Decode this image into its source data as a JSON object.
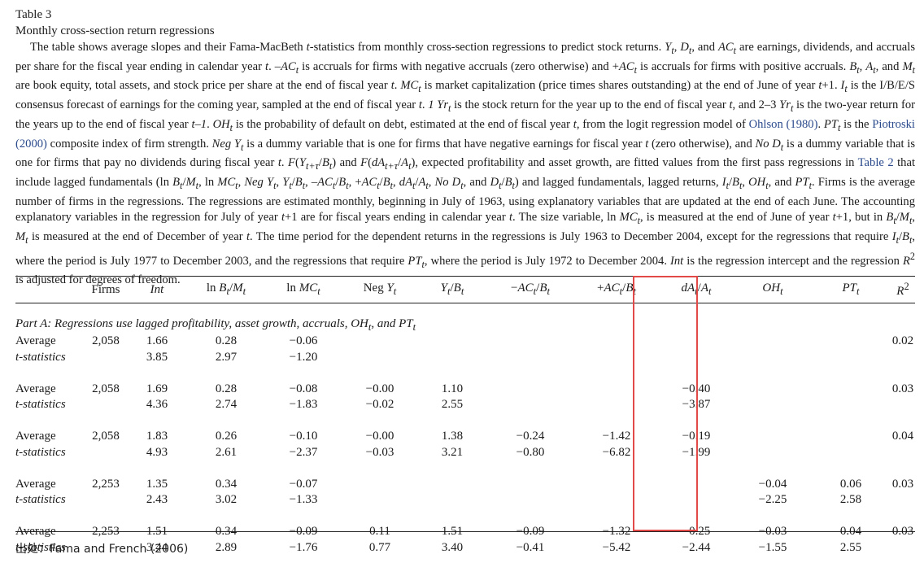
{
  "table": {
    "label": "Table 3",
    "title": "Monthly cross-section return regressions",
    "caption_html": "The table shows average slopes and their Fama-MacBeth <i>t</i>-statistics from monthly cross-section regressions to predict stock returns. <i>Y<sub>t</sub></i>, <i>D<sub>t</sub></i>, and <i>AC<sub>t</sub></i> are earnings, dividends, and accruals per share for the fiscal year ending in calendar year <i>t</i>. –<i>AC<sub>t</sub></i> is accruals for firms with negative accruals (zero otherwise) and +<i>AC<sub>t</sub></i> is accruals for firms with positive accruals. <i>B<sub>t</sub></i>, <i>A<sub>t</sub></i>, and <i>M<sub>t</sub></i> are book equity, total assets, and stock price per share at the end of fiscal year <i>t</i>. <i>MC<sub>t</sub></i> is market capitalization (price times shares outstanding) at the end of June of year <i>t</i>+1. <i>I<sub>t</sub></i> is the I/B/E/S consensus forecast of earnings for the coming year, sampled at the end of fiscal year <i>t</i>. <i>1 Yr<sub>t</sub></i> is the stock return for the year up to the end of fiscal year <i>t</i>, and 2–3 <i>Yr<sub>t</sub></i> is the two-year return for the years up to the end of fiscal year <i>t–1</i>. <i>OH<sub>t</sub></i> is the probability of default on debt, estimated at the end of fiscal year <i>t</i>, from the logit regression model of <a>Ohlson (1980)</a>. <i>PT<sub>t</sub></i> is the <a>Piotroski (2000)</a> composite index of firm strength. <i>Neg Y<sub>t</sub></i> is a dummy variable that is one for firms that have negative earnings for fiscal year <i>t</i> (zero otherwise), and <i>No D<sub>t</sub></i> is a dummy variable that is one for firms that pay no dividends during fiscal year <i>t</i>. <i>F</i>(<i>Y<sub>t+τ</sub></i>/<i>B<sub>t</sub></i>) and <i>F</i>(<i>dA<sub>t+τ</sub></i>/<i>A<sub>t</sub></i>), expected profitability and asset growth, are fitted values from the first pass regressions in <a>Table 2</a> that include lagged fundamentals (ln <i>B<sub>t</sub></i>/<i>M<sub>t</sub></i>, ln <i>MC<sub>t</sub></i>, <i>Neg Y<sub>t</sub></i>, <i>Y<sub>t</sub></i>/<i>B<sub>t</sub></i>, –<i>AC<sub>t</sub></i>/<i>B<sub>t</sub></i>, +<i>AC<sub>t</sub></i>/<i>B<sub>t</sub></i>, <i>dA<sub>t</sub></i>/<i>A<sub>t</sub></i>, <i>No D<sub>t</sub></i>, and <i>D<sub>t</sub></i>/<i>B<sub>t</sub></i>) and lagged fundamentals, lagged returns, <i>I<sub>t</sub></i>/<i>B<sub>t</sub></i>, <i>OH<sub>t</sub></i>, and <i>PT<sub>t</sub></i>. Firms is the average number of firms in the regressions. The regressions are estimated monthly, beginning in July of 1963, using explanatory variables that are updated at the end of each June. The accounting explanatory variables in the regression for July of year <i>t</i>+1 are for fiscal years ending in calendar year <i>t</i>. The size variable, ln <i>MC<sub>t</sub></i>, is measured at the end of June of year <i>t</i>+1, but in <i>B<sub>t</sub></i>/<i>M<sub>t</sub></i>, <i>M<sub>t</sub></i> is measured at the end of December of year <i>t</i>. The time period for the dependent returns in the regressions is July 1963 to December 2004, except for the regressions that require <i>I<sub>t</sub></i>/<i>B<sub>t</sub></i>, where the period is July 1977 to December 2003, and the regressions that require <i>PT<sub>t</sub></i>, where the period is July 1972 to December 2004. <i>Int</i> is the regression intercept and the regression <i>R</i><sup>2</sup> is adjusted for degrees of freedom.",
    "headers_html": [
      "",
      "Firms",
      "<i>Int</i>",
      "ln <i>B<sub>t</sub></i>/<i>M<sub>t</sub></i>",
      "ln <i>MC<sub>t</sub></i>",
      "Neg <i>Y<sub>t</sub></i>",
      "<i>Y<sub>t</sub></i>/<i>B<sub>t</sub></i>",
      "−<i>AC<sub>t</sub></i>/<i>B<sub>t</sub></i>",
      "+<i>AC<sub>t</sub></i>/<i>B<sub>t</sub></i>",
      "<i>dA<sub>t</sub></i>/<i>A<sub>t</sub></i>",
      "<i>OH<sub>t</sub></i>",
      "<i>PT<sub>t</sub></i>",
      "<i>R</i><sup>2</sup>"
    ],
    "part_a_html": "Part A: Regressions use lagged profitability, asset growth, accruals, <i>OH<sub>t</sub></i>, and <i>PT<sub>t</sub></i>",
    "row_labels": {
      "avg": "Average",
      "tstat": "t-statistics"
    },
    "groups": [
      {
        "avg": [
          "2,058",
          "1.66",
          "0.28",
          "−0.06",
          "",
          "",
          "",
          "",
          "",
          "",
          "",
          "0.02"
        ],
        "tstat": [
          "",
          "3.85",
          "2.97",
          "−1.20",
          "",
          "",
          "",
          "",
          "",
          "",
          "",
          ""
        ]
      },
      {
        "avg": [
          "2,058",
          "1.69",
          "0.28",
          "−0.08",
          "−0.00",
          "1.10",
          "",
          "",
          "−0.40",
          "",
          "",
          "0.03"
        ],
        "tstat": [
          "",
          "4.36",
          "2.74",
          "−1.83",
          "−0.02",
          "2.55",
          "",
          "",
          "−3.87",
          "",
          "",
          ""
        ]
      },
      {
        "avg": [
          "2,058",
          "1.83",
          "0.26",
          "−0.10",
          "−0.00",
          "1.38",
          "−0.24",
          "−1.42",
          "−0.19",
          "",
          "",
          "0.04"
        ],
        "tstat": [
          "",
          "4.93",
          "2.61",
          "−2.37",
          "−0.03",
          "3.21",
          "−0.80",
          "−6.82",
          "−1.99",
          "",
          "",
          ""
        ]
      },
      {
        "avg": [
          "2,253",
          "1.35",
          "0.34",
          "−0.07",
          "",
          "",
          "",
          "",
          "",
          "−0.04",
          "0.06",
          "0.03"
        ],
        "tstat": [
          "",
          "2.43",
          "3.02",
          "−1.33",
          "",
          "",
          "",
          "",
          "",
          "−2.25",
          "2.58",
          ""
        ]
      },
      {
        "avg": [
          "2,253",
          "1.51",
          "0.34",
          "−0.09",
          "0.11",
          "1.51",
          "−0.09",
          "−1.32",
          "−0.25",
          "−0.03",
          "0.04",
          "0.03"
        ],
        "tstat": [
          "",
          "3.44",
          "2.89",
          "−1.76",
          "0.77",
          "3.40",
          "−0.41",
          "−5.42",
          "−2.44",
          "−1.55",
          "2.55",
          ""
        ]
      }
    ]
  },
  "source": "出处：Fama and French (2006)",
  "colors": {
    "highlight": "#e24a4a",
    "link": "#2a4a8c"
  }
}
